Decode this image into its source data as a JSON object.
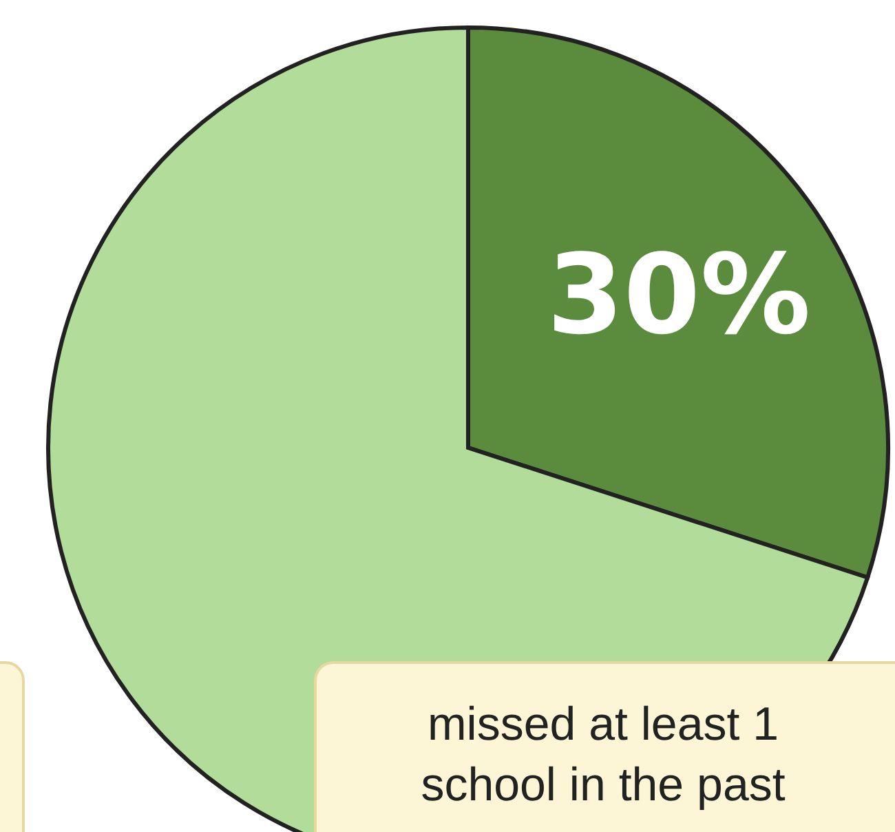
{
  "chart_data": {
    "type": "pie",
    "categories": [
      null,
      null
    ],
    "values": [
      30,
      70
    ],
    "colors": [
      "#5b8c3e",
      "#b1dc9a"
    ],
    "value_labels": [
      "30%",
      null
    ],
    "annotations": [
      "missed at least 1 school in the past"
    ]
  }
}
